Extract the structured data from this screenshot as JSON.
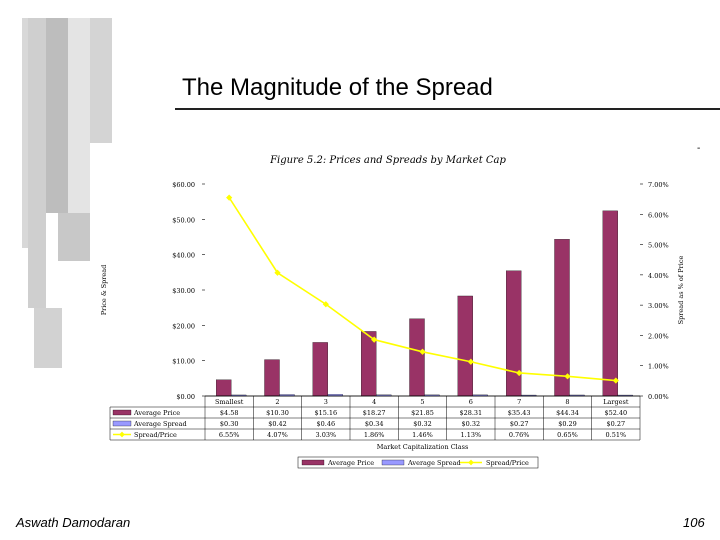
{
  "slide": {
    "title": "The Magnitude of the Spread",
    "dash": "-",
    "author": "Aswath Damodaran",
    "page_number": "106"
  },
  "colors": {
    "bar_price": "#993366",
    "bar_spread": "#9999ff",
    "line": "#ffff00",
    "deco_gray": "#c8c8c8"
  },
  "chart_data": {
    "type": "bar",
    "title": "Figure 5.2: Prices and Spreads by Market Cap",
    "xlabel": "Market Capitalization Class",
    "ylabel": "Price & Spread",
    "y2label": "Spread as % of Price",
    "categories": [
      "Smallest",
      "2",
      "3",
      "4",
      "5",
      "6",
      "7",
      "8",
      "Largest"
    ],
    "ylim": [
      0,
      60
    ],
    "y_ticks": [
      "$0.00",
      "$10.00",
      "$20.00",
      "$30.00",
      "$40.00",
      "$50.00",
      "$60.00"
    ],
    "y2lim": [
      0,
      7
    ],
    "y2_ticks": [
      "0.00%",
      "1.00%",
      "2.00%",
      "3.00%",
      "4.00%",
      "5.00%",
      "6.00%",
      "7.00%"
    ],
    "series": [
      {
        "name": "Average Price",
        "kind": "bar",
        "axis": "left",
        "values": [
          4.58,
          10.3,
          15.16,
          18.27,
          21.85,
          28.31,
          35.43,
          44.34,
          52.4
        ],
        "labels": [
          "$4.58",
          "$10.30",
          "$15.16",
          "$18.27",
          "$21.85",
          "$28.31",
          "$35.43",
          "$44.34",
          "$52.40"
        ]
      },
      {
        "name": "Average Spread",
        "kind": "bar",
        "axis": "left",
        "values": [
          0.3,
          0.42,
          0.46,
          0.34,
          0.32,
          0.32,
          0.27,
          0.29,
          0.27
        ],
        "labels": [
          "$0.30",
          "$0.42",
          "$0.46",
          "$0.34",
          "$0.32",
          "$0.32",
          "$0.27",
          "$0.29",
          "$0.27"
        ]
      },
      {
        "name": "Spread/Price",
        "kind": "line",
        "axis": "right",
        "values": [
          6.55,
          4.07,
          3.03,
          1.86,
          1.46,
          1.13,
          0.76,
          0.65,
          0.51
        ],
        "labels": [
          "6.55%",
          "4.07%",
          "3.03%",
          "1.86%",
          "1.46%",
          "1.13%",
          "0.76%",
          "0.65%",
          "0.51%"
        ]
      }
    ],
    "legend": [
      "Average Price",
      "Average Spread",
      "Spread/Price"
    ]
  }
}
